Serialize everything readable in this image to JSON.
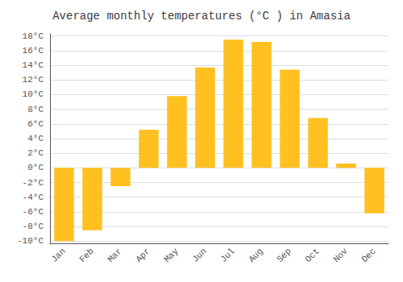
{
  "chart_data": {
    "type": "bar",
    "title": "Average monthly temperatures (°C ) in Amasia",
    "categories": [
      "Jan",
      "Feb",
      "Mar",
      "Apr",
      "May",
      "Jun",
      "Jul",
      "Aug",
      "Sep",
      "Oct",
      "Nov",
      "Dec"
    ],
    "values": [
      -10,
      -8.5,
      -2.5,
      5.2,
      9.8,
      13.7,
      17.5,
      17.2,
      13.4,
      6.8,
      0.6,
      -6.2
    ],
    "color": "#FFC020",
    "ylim": [
      -10.3,
      18.3
    ],
    "yticks": [
      {
        "value": -10,
        "label": "-10°C"
      },
      {
        "value": -8,
        "label": "-8°C"
      },
      {
        "value": -6,
        "label": "-6°C"
      },
      {
        "value": -4,
        "label": "-4°C"
      },
      {
        "value": -2,
        "label": "-2°C"
      },
      {
        "value": 0,
        "label": "0°C"
      },
      {
        "value": 2,
        "label": "2°C"
      },
      {
        "value": 4,
        "label": "4°C"
      },
      {
        "value": 6,
        "label": "6°C"
      },
      {
        "value": 8,
        "label": "8°C"
      },
      {
        "value": 10,
        "label": "10°C"
      },
      {
        "value": 12,
        "label": "12°C"
      },
      {
        "value": 14,
        "label": "14°C"
      },
      {
        "value": 16,
        "label": "16°C"
      },
      {
        "value": 18,
        "label": "18°C"
      }
    ],
    "grid": true
  }
}
